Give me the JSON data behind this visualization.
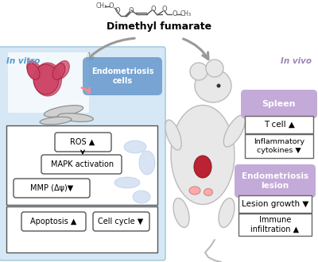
{
  "title": "Dimethyl fumarate",
  "in_vitro_label": "In vitro",
  "in_vivo_label": "In vivo",
  "left_panel_bg": "#d6e8f5",
  "purple_color": "#c4aad8",
  "purple_dark": "#9b85b8",
  "blue_bubble_color": "#6699cc",
  "arrow_color": "#999999",
  "left_labels": {
    "endometriosis_cells": "Endometriosis\ncells",
    "ros": "ROS ▲",
    "mapk": "MAPK activation",
    "mmp": "MMP (Δψ)▼",
    "apoptosis": "Apoptosis ▲",
    "cell_cycle": "Cell cycle ▼"
  },
  "right_labels": {
    "spleen": "Spleen",
    "tcell": "T cell ▲",
    "inflammatory": "Inflammatory\ncytokines ▼",
    "endo_lesion": "Endometriosis\nlesion",
    "lesion_growth": "Lesion growth ▼",
    "immune": "Immune\ninfiltration ▲"
  },
  "figsize": [
    4.0,
    3.3
  ],
  "dpi": 100
}
